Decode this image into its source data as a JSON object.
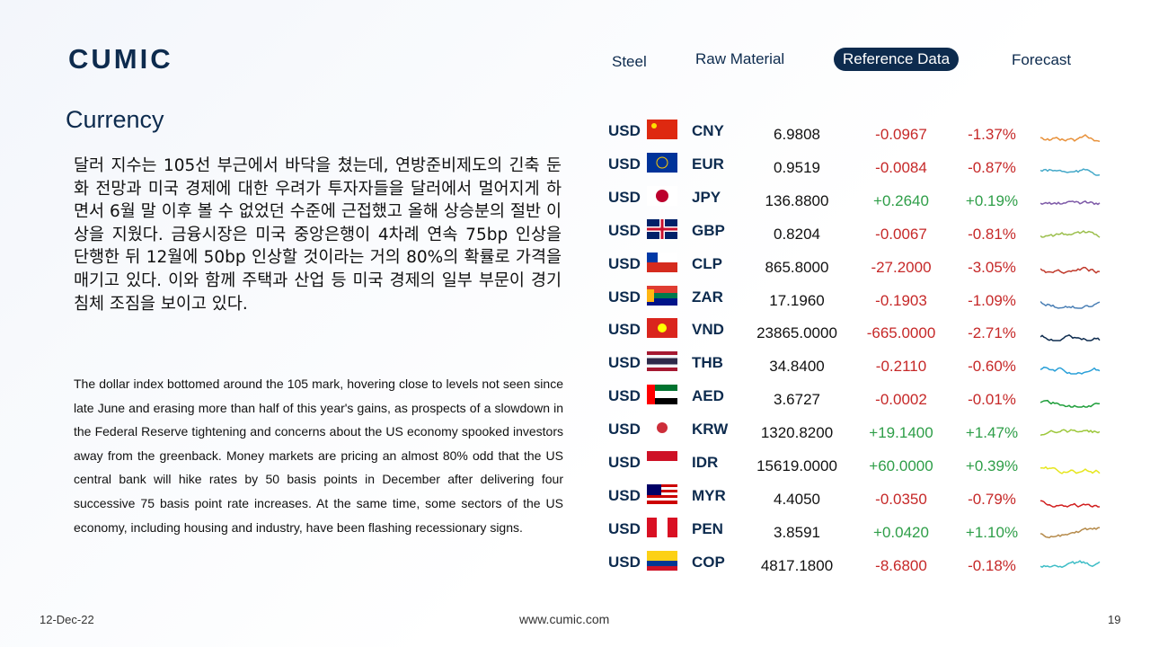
{
  "header": {
    "logo": "CUMIC",
    "nav": [
      "Steel",
      "Raw Material",
      "Reference Data",
      "Forecast"
    ]
  },
  "title": "Currency",
  "korean_text": "달러 지수는 105선 부근에서 바닥을 쳤는데, 연방준비제도의 긴축 둔화 전망과 미국 경제에 대한 우려가 투자자들을 달러에서 멀어지게 하면서 6월 말 이후 볼 수 없었던 수준에 근접했고 올해 상승분의 절반 이상을 지웠다. 금융시장은 미국 중앙은행이 4차례 연속 75bp 인상을 단행한 뒤 12월에 50bp 인상할 것이라는 거의 80%의 확률로 가격을 매기고 있다. 이와 함께 주택과 산업 등 미국 경제의 일부 부문이 경기침체 조짐을 보이고 있다.",
  "english_text": "The dollar index bottomed around the 105 mark, hovering close to levels not seen since late June and erasing more than half of this year's gains, as prospects of a slowdown in the Federal Reserve tightening and concerns about the US economy spooked investors away from the greenback. Money markets are pricing an almost 80% odd that the US central bank will hike rates by 50 basis points in December after delivering four successive 75 basis point rate increases. At the same time, some sectors of the US economy, including housing and industry, have been flashing recessionary signs.",
  "table": {
    "rows": [
      [
        "USD",
        "CNY",
        "6.9808",
        "-0.0967",
        "-1.37%"
      ],
      [
        "USD",
        "EUR",
        "0.9519",
        "-0.0084",
        "-0.87%"
      ],
      [
        "USD",
        "JPY",
        "136.8800",
        "+0.2640",
        "+0.19%"
      ],
      [
        "USD",
        "GBP",
        "0.8204",
        "-0.0067",
        "-0.81%"
      ],
      [
        "USD",
        "CLP",
        "865.8000",
        "-27.2000",
        "-3.05%"
      ],
      [
        "USD",
        "ZAR",
        "17.1960",
        "-0.1903",
        "-1.09%"
      ],
      [
        "USD",
        "VND",
        "23865.0000",
        "-665.0000",
        "-2.71%"
      ],
      [
        "USD",
        "THB",
        "34.8400",
        "-0.2110",
        "-0.60%"
      ],
      [
        "USD",
        "AED",
        "3.6727",
        "-0.0002",
        "-0.01%"
      ],
      [
        "USD",
        "KRW",
        "1320.8200",
        "+19.1400",
        "+1.47%"
      ],
      [
        "USD",
        "IDR",
        "15619.0000",
        "+60.0000",
        "+0.39%"
      ],
      [
        "USD",
        "MYR",
        "4.4050",
        "-0.0350",
        "-0.79%"
      ],
      [
        "USD",
        "PEN",
        "3.8591",
        "+0.0420",
        "+1.10%"
      ],
      [
        "USD",
        "COP",
        "4817.1800",
        "-8.6800",
        "-0.18%"
      ]
    ]
  },
  "footer": {
    "date": "12-Dec-22",
    "url": "www.cumic.com",
    "page": "19"
  }
}
